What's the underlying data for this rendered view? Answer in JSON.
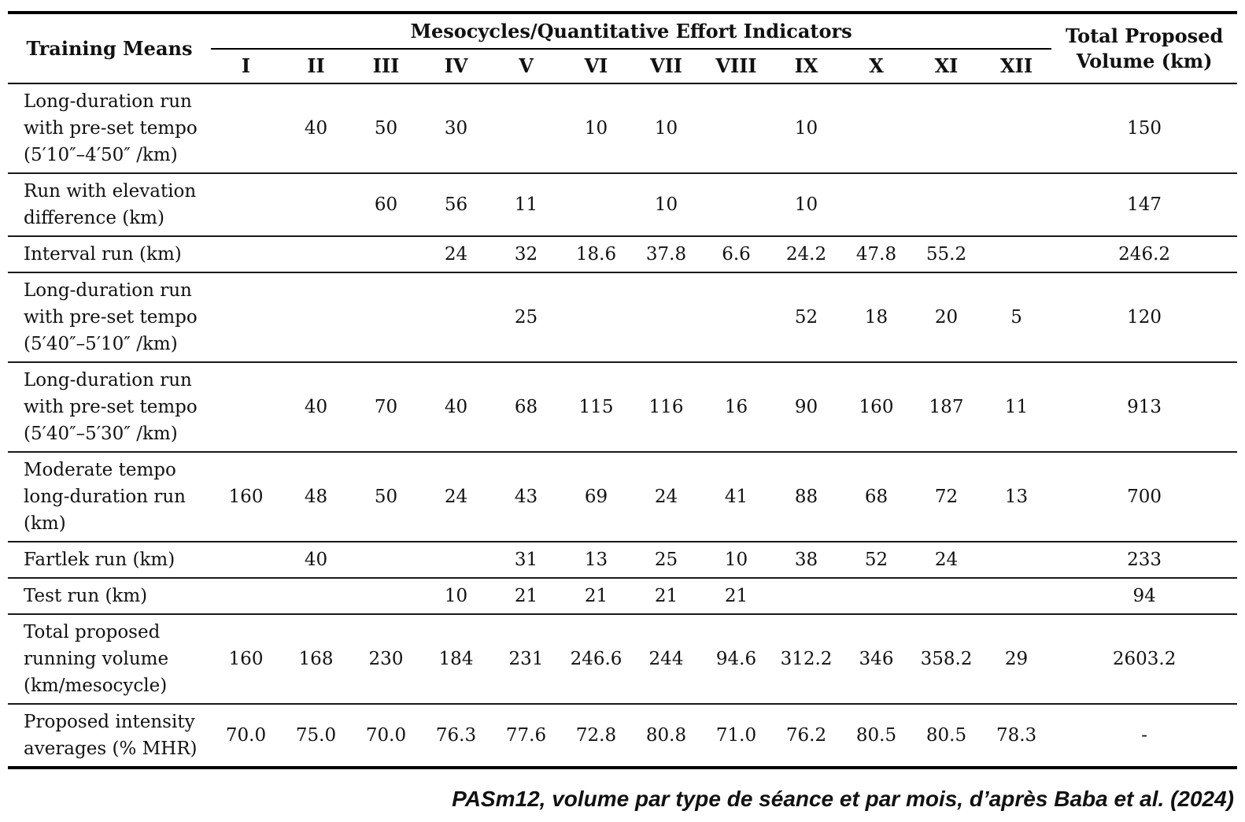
{
  "table": {
    "training_means_header": "Training Means",
    "group_header": "Mesocycles/Quantitative Effort Indicators",
    "total_header": "Total Proposed\nVolume (km)",
    "mesocycles": [
      "I",
      "II",
      "III",
      "IV",
      "V",
      "VI",
      "VII",
      "VIII",
      "IX",
      "X",
      "XI",
      "XII"
    ],
    "rows": [
      {
        "label": "Long-duration run\nwith pre-set tempo\n(5′10″–4′50″ /km)",
        "values": [
          "",
          "40",
          "50",
          "30",
          "",
          "10",
          "10",
          "",
          "10",
          "",
          "",
          ""
        ],
        "total": "150"
      },
      {
        "label": "Run with elevation\ndifference (km)",
        "values": [
          "",
          "",
          "60",
          "56",
          "11",
          "",
          "10",
          "",
          "10",
          "",
          "",
          ""
        ],
        "total": "147"
      },
      {
        "label": "Interval run (km)",
        "values": [
          "",
          "",
          "",
          "24",
          "32",
          "18.6",
          "37.8",
          "6.6",
          "24.2",
          "47.8",
          "55.2",
          ""
        ],
        "total": "246.2"
      },
      {
        "label": "Long-duration run\nwith pre-set tempo\n(5′40″–5′10″ /km)",
        "values": [
          "",
          "",
          "",
          "",
          "25",
          "",
          "",
          "",
          "52",
          "18",
          "20",
          "5"
        ],
        "total": "120"
      },
      {
        "label": "Long-duration run\nwith pre-set tempo\n(5′40″–5′30″ /km)",
        "values": [
          "",
          "40",
          "70",
          "40",
          "68",
          "115",
          "116",
          "16",
          "90",
          "160",
          "187",
          "11"
        ],
        "total": "913"
      },
      {
        "label": "Moderate tempo\nlong-duration run\n(km)",
        "values": [
          "160",
          "48",
          "50",
          "24",
          "43",
          "69",
          "24",
          "41",
          "88",
          "68",
          "72",
          "13"
        ],
        "total": "700"
      },
      {
        "label": "Fartlek run (km)",
        "values": [
          "",
          "40",
          "",
          "",
          "31",
          "13",
          "25",
          "10",
          "38",
          "52",
          "24",
          ""
        ],
        "total": "233"
      },
      {
        "label": "Test run (km)",
        "values": [
          "",
          "",
          "",
          "10",
          "21",
          "21",
          "21",
          "21",
          "",
          "",
          "",
          ""
        ],
        "total": "94"
      },
      {
        "label": "Total proposed\nrunning volume\n(km/mesocycle)",
        "values": [
          "160",
          "168",
          "230",
          "184",
          "231",
          "246.6",
          "244",
          "94.6",
          "312.2",
          "346",
          "358.2",
          "29"
        ],
        "total": "2603.2"
      },
      {
        "label": "Proposed intensity\naverages (% MHR)",
        "values": [
          "70.0",
          "75.0",
          "70.0",
          "76.3",
          "77.6",
          "72.8",
          "80.8",
          "71.0",
          "76.2",
          "80.5",
          "80.5",
          "78.3"
        ],
        "total": "-"
      }
    ]
  },
  "caption": "PASm12, volume par type de séance et par mois, d’après Baba et al. (2024)"
}
